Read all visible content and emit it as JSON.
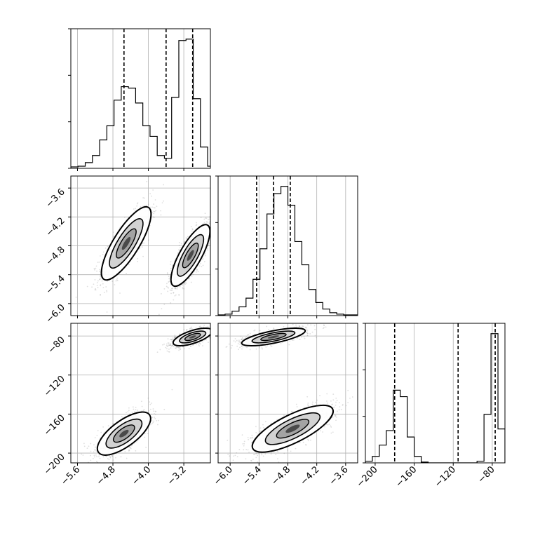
{
  "chart_data": {
    "type": "corner",
    "title": "",
    "parameters": [
      {
        "id": "p0",
        "label": "",
        "range": [
          -5.75,
          -2.6
        ],
        "ticks": [
          -5.6,
          -4.8,
          -4.0,
          -3.2
        ],
        "tick_labels": [
          "−5.6",
          "−4.8",
          "−4.0",
          "−3.2"
        ],
        "quantiles": [
          -4.55,
          -3.6,
          -3.0
        ],
        "hist": {
          "edges": [
            -5.75,
            -5.5875,
            -5.425,
            -5.2625,
            -5.1,
            -4.9375,
            -4.775,
            -4.6125,
            -4.45,
            -4.2875,
            -4.125,
            -3.9625,
            -3.8,
            -3.6375,
            -3.475,
            -3.3125,
            -3.15,
            -2.9875,
            -2.825,
            -2.6625,
            -2.5
          ],
          "counts": [
            2,
            3,
            8,
            18,
            40,
            60,
            96,
            115,
            113,
            92,
            60,
            45,
            18,
            14,
            100,
            180,
            182,
            98,
            30,
            3
          ]
        }
      },
      {
        "id": "p1",
        "label": "",
        "range": [
          -6.25,
          -3.35
        ],
        "ticks": [
          -6.0,
          -5.4,
          -4.8,
          -4.2,
          -3.6
        ],
        "tick_labels": [
          "−6.0",
          "−5.4",
          "−4.8",
          "−4.2",
          "−3.6"
        ],
        "quantiles": [
          -5.45,
          -5.1,
          -4.75
        ],
        "hist": {
          "edges": [
            -6.25,
            -6.105,
            -5.96,
            -5.815,
            -5.67,
            -5.525,
            -5.38,
            -5.235,
            -5.09,
            -4.945,
            -4.8,
            -4.655,
            -4.51,
            -4.365,
            -4.22,
            -4.075,
            -3.93,
            -3.785,
            -3.64,
            -3.495,
            -3.35
          ],
          "counts": [
            1,
            2,
            6,
            12,
            24,
            50,
            92,
            140,
            168,
            178,
            152,
            102,
            70,
            36,
            18,
            9,
            4,
            2,
            1,
            1
          ]
        }
      },
      {
        "id": "p2",
        "label": "",
        "range": [
          -210,
          -67
        ],
        "ticks": [
          -200,
          -160,
          -120,
          -80
        ],
        "tick_labels": [
          "−200",
          "−160",
          "−120",
          "−80"
        ],
        "quantiles": [
          -180,
          -115,
          -77
        ],
        "hist": {
          "edges": [
            -210,
            -202.85,
            -195.7,
            -188.55,
            -181.4,
            -174.25,
            -167.1,
            -159.95,
            -152.8,
            -145.65,
            -138.5,
            -131.35,
            -124.2,
            -117.05,
            -109.9,
            -102.75,
            -95.6,
            -88.45,
            -81.3,
            -74.15,
            -67
          ],
          "counts": [
            2,
            8,
            22,
            40,
            90,
            82,
            32,
            8,
            1,
            0,
            0,
            0,
            0,
            0,
            0,
            0,
            2,
            60,
            160,
            42
          ]
        }
      }
    ],
    "joint": [
      {
        "x": "p0",
        "y": "p1",
        "clusters": [
          {
            "mean": [
              -4.5,
              -4.75
            ],
            "sd": [
              0.28,
              0.38
            ],
            "rho": 0.8,
            "weight": 0.45
          },
          {
            "mean": [
              -3.05,
              -5.0
            ],
            "sd": [
              0.22,
              0.32
            ],
            "rho": 0.78,
            "weight": 0.55
          }
        ]
      },
      {
        "x": "p0",
        "y": "p2",
        "clusters": [
          {
            "mean": [
              -4.55,
              -180
            ],
            "sd": [
              0.3,
              11
            ],
            "rho": 0.7,
            "weight": 0.45
          },
          {
            "mean": [
              -3.0,
              -81
            ],
            "sd": [
              0.22,
              4.5
            ],
            "rho": 0.65,
            "weight": 0.55
          }
        ]
      },
      {
        "x": "p1",
        "y": "p2",
        "clusters": [
          {
            "mean": [
              -4.7,
              -175
            ],
            "sd": [
              0.42,
              12
            ],
            "rho": 0.75,
            "weight": 0.45
          },
          {
            "mean": [
              -5.1,
              -81
            ],
            "sd": [
              0.33,
              4.5
            ],
            "rho": 0.7,
            "weight": 0.55
          }
        ]
      }
    ],
    "grid": true,
    "colors": {
      "axes": "#000000",
      "grid": "#b0b0b0",
      "points": "#808080",
      "contour": "#000000",
      "density_max": "#000000"
    }
  }
}
